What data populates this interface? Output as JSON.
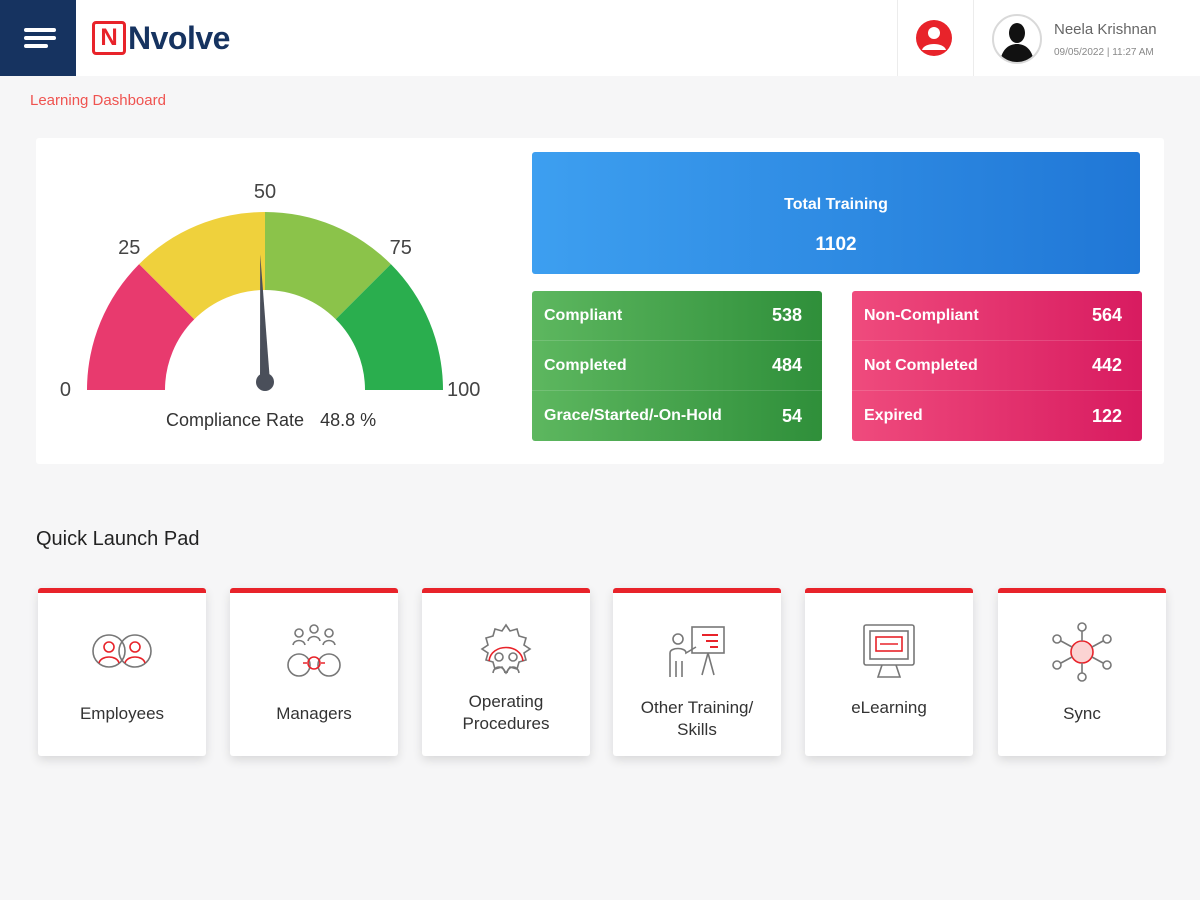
{
  "header": {
    "logo_mark": "N",
    "logo_text": "Nvolve",
    "user": {
      "name": "Neela Krishnan",
      "datetime": "09/05/2022 | 11:27 AM"
    }
  },
  "breadcrumb": "Learning Dashboard",
  "gauge": {
    "value": 48.8,
    "min": 0,
    "max": 100,
    "tick_labels": [
      "0",
      "25",
      "50",
      "75",
      "100"
    ],
    "segment_colors": [
      "#e83a6e",
      "#efd13c",
      "#8bc34a",
      "#2aae4e"
    ],
    "caption_label": "Compliance Rate",
    "caption_value": "48.8 %"
  },
  "totals": {
    "label": "Total Training",
    "value": "1102"
  },
  "compliant_card": {
    "rows": [
      {
        "label": "Compliant",
        "value": "538"
      },
      {
        "label": "Completed",
        "value": "484"
      },
      {
        "label": "Grace/Started/-On-Hold",
        "value": "54"
      }
    ]
  },
  "noncompliant_card": {
    "rows": [
      {
        "label": "Non-Compliant",
        "value": "564"
      },
      {
        "label": "Not Completed",
        "value": "442"
      },
      {
        "label": "Expired",
        "value": "122"
      }
    ]
  },
  "quick_launch": {
    "title": "Quick Launch Pad",
    "tiles": [
      {
        "line1": "Employees",
        "line2": "",
        "icon": "employees-icon"
      },
      {
        "line1": "Managers",
        "line2": "",
        "icon": "managers-icon"
      },
      {
        "line1": "Operating",
        "line2": "Procedures",
        "icon": "operating-procedures-icon"
      },
      {
        "line1": "Other Training/",
        "line2": "Skills",
        "icon": "presentation-icon"
      },
      {
        "line1": "eLearning",
        "line2": "",
        "icon": "monitor-icon"
      },
      {
        "line1": "Sync",
        "line2": "",
        "icon": "network-icon"
      }
    ]
  },
  "colors": {
    "brand_red": "#e8232a",
    "brand_navy": "#163360",
    "breadcrumb": "#ef5350"
  }
}
